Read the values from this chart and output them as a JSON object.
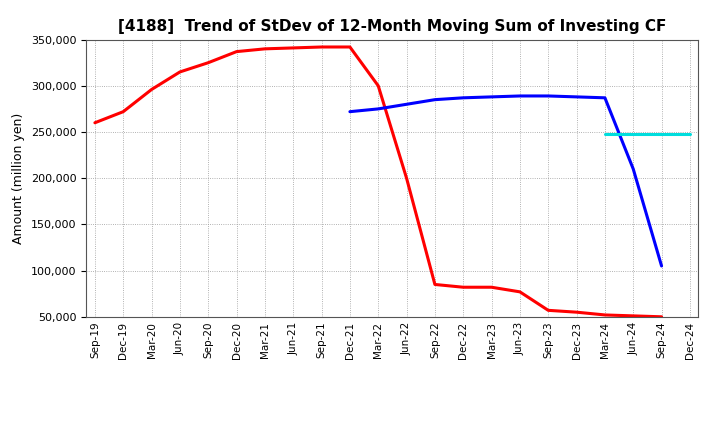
{
  "title": "[4188]  Trend of StDev of 12-Month Moving Sum of Investing CF",
  "ylabel": "Amount (million yen)",
  "background_color": "#ffffff",
  "grid_color": "#999999",
  "ylim": [
    50000,
    350000
  ],
  "yticks": [
    50000,
    100000,
    150000,
    200000,
    250000,
    300000,
    350000
  ],
  "series": {
    "3yr": {
      "color": "#ff0000",
      "x": [
        "Sep-19",
        "Dec-19",
        "Mar-20",
        "Jun-20",
        "Sep-20",
        "Dec-20",
        "Mar-21",
        "Jun-21",
        "Sep-21",
        "Dec-21",
        "Mar-22",
        "Jun-22",
        "Sep-22",
        "Dec-22",
        "Mar-23",
        "Jun-23",
        "Sep-23",
        "Dec-23",
        "Mar-24",
        "Jun-24",
        "Sep-24"
      ],
      "y": [
        260000,
        272000,
        296000,
        315000,
        325000,
        337000,
        340000,
        341000,
        342000,
        342000,
        300000,
        200000,
        85000,
        82000,
        82000,
        77000,
        57000,
        55000,
        52000,
        51000,
        50000
      ]
    },
    "5yr": {
      "color": "#0000ff",
      "x": [
        "Dec-21",
        "Mar-22",
        "Jun-22",
        "Sep-22",
        "Dec-22",
        "Mar-23",
        "Jun-23",
        "Sep-23",
        "Dec-23",
        "Mar-24",
        "Jun-24",
        "Sep-24"
      ],
      "y": [
        272000,
        275000,
        280000,
        285000,
        287000,
        288000,
        289000,
        289000,
        288000,
        287000,
        210000,
        105000
      ]
    },
    "7yr": {
      "color": "#00dddd",
      "x": [
        "Mar-24",
        "Jun-24",
        "Sep-24",
        "Dec-24"
      ],
      "y": [
        248000,
        248000,
        248000,
        248000
      ]
    },
    "10yr": {
      "color": "#008000",
      "x": [],
      "y": []
    }
  },
  "xticks": [
    "Sep-19",
    "Dec-19",
    "Mar-20",
    "Jun-20",
    "Sep-20",
    "Dec-20",
    "Mar-21",
    "Jun-21",
    "Sep-21",
    "Dec-21",
    "Mar-22",
    "Jun-22",
    "Sep-22",
    "Dec-22",
    "Mar-23",
    "Jun-23",
    "Sep-23",
    "Dec-23",
    "Mar-24",
    "Jun-24",
    "Sep-24",
    "Dec-24"
  ]
}
